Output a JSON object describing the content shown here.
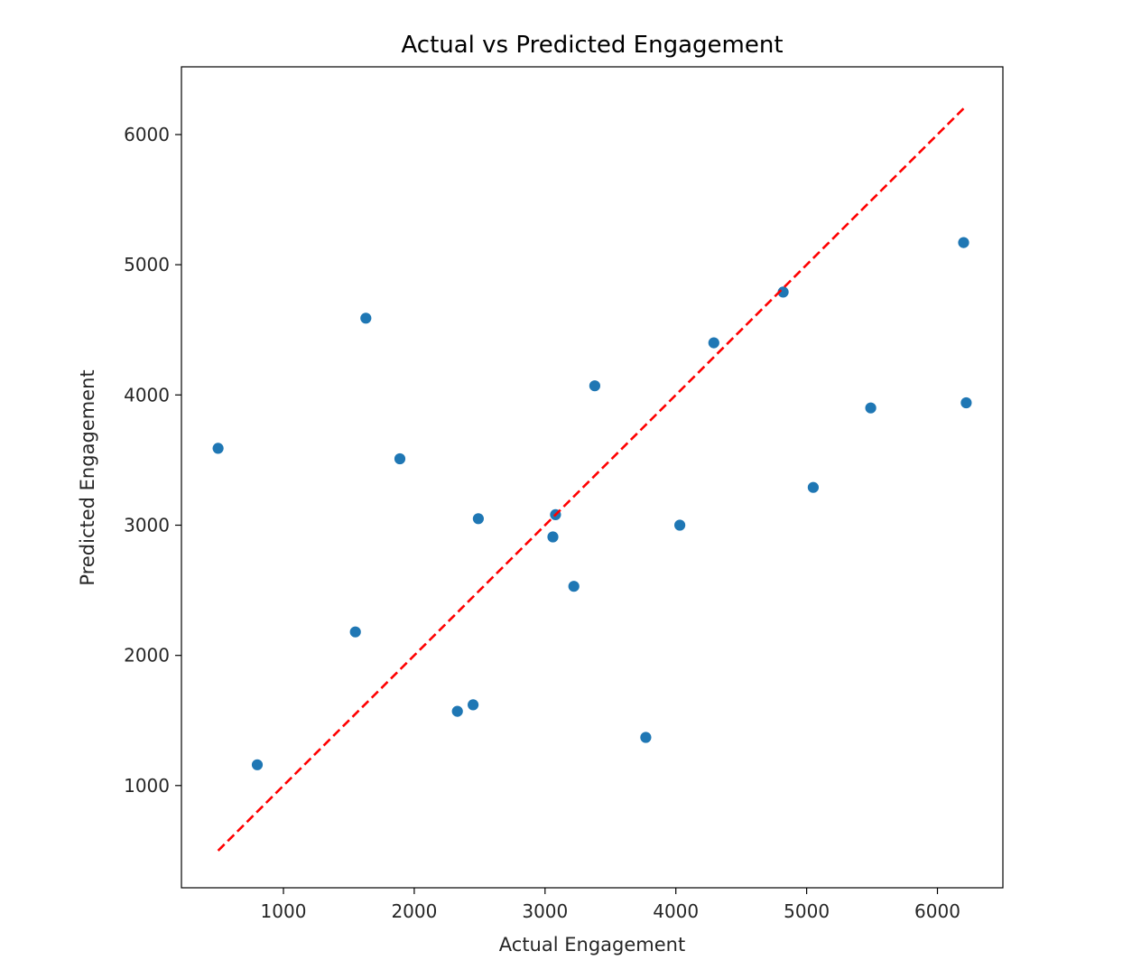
{
  "chart_data": {
    "type": "scatter",
    "title": "Actual vs Predicted Engagement",
    "xlabel": "Actual Engagement",
    "ylabel": "Predicted Engagement",
    "xlim": [
      220,
      6500
    ],
    "ylim": [
      215,
      6520
    ],
    "xticks": [
      1000,
      2000,
      3000,
      4000,
      5000,
      6000
    ],
    "yticks": [
      1000,
      2000,
      3000,
      4000,
      5000,
      6000
    ],
    "grid": false,
    "legend": "none",
    "series": [
      {
        "color": "#1f77b4",
        "points": [
          {
            "x": 500,
            "y": 3590
          },
          {
            "x": 800,
            "y": 1160
          },
          {
            "x": 1550,
            "y": 2180
          },
          {
            "x": 1630,
            "y": 4590
          },
          {
            "x": 1890,
            "y": 3510
          },
          {
            "x": 2330,
            "y": 1570
          },
          {
            "x": 2450,
            "y": 1620
          },
          {
            "x": 2490,
            "y": 3050
          },
          {
            "x": 3060,
            "y": 2910
          },
          {
            "x": 3080,
            "y": 3080
          },
          {
            "x": 3220,
            "y": 2530
          },
          {
            "x": 3380,
            "y": 4070
          },
          {
            "x": 3770,
            "y": 1370
          },
          {
            "x": 4030,
            "y": 3000
          },
          {
            "x": 4290,
            "y": 4400
          },
          {
            "x": 4820,
            "y": 4790
          },
          {
            "x": 5050,
            "y": 3290
          },
          {
            "x": 5490,
            "y": 3900
          },
          {
            "x": 6200,
            "y": 5170
          },
          {
            "x": 6220,
            "y": 3940
          }
        ]
      }
    ],
    "reference_line": {
      "x": [
        500,
        6200
      ],
      "y": [
        500,
        6200
      ],
      "color": "#ff0000",
      "style": "dashed"
    }
  }
}
